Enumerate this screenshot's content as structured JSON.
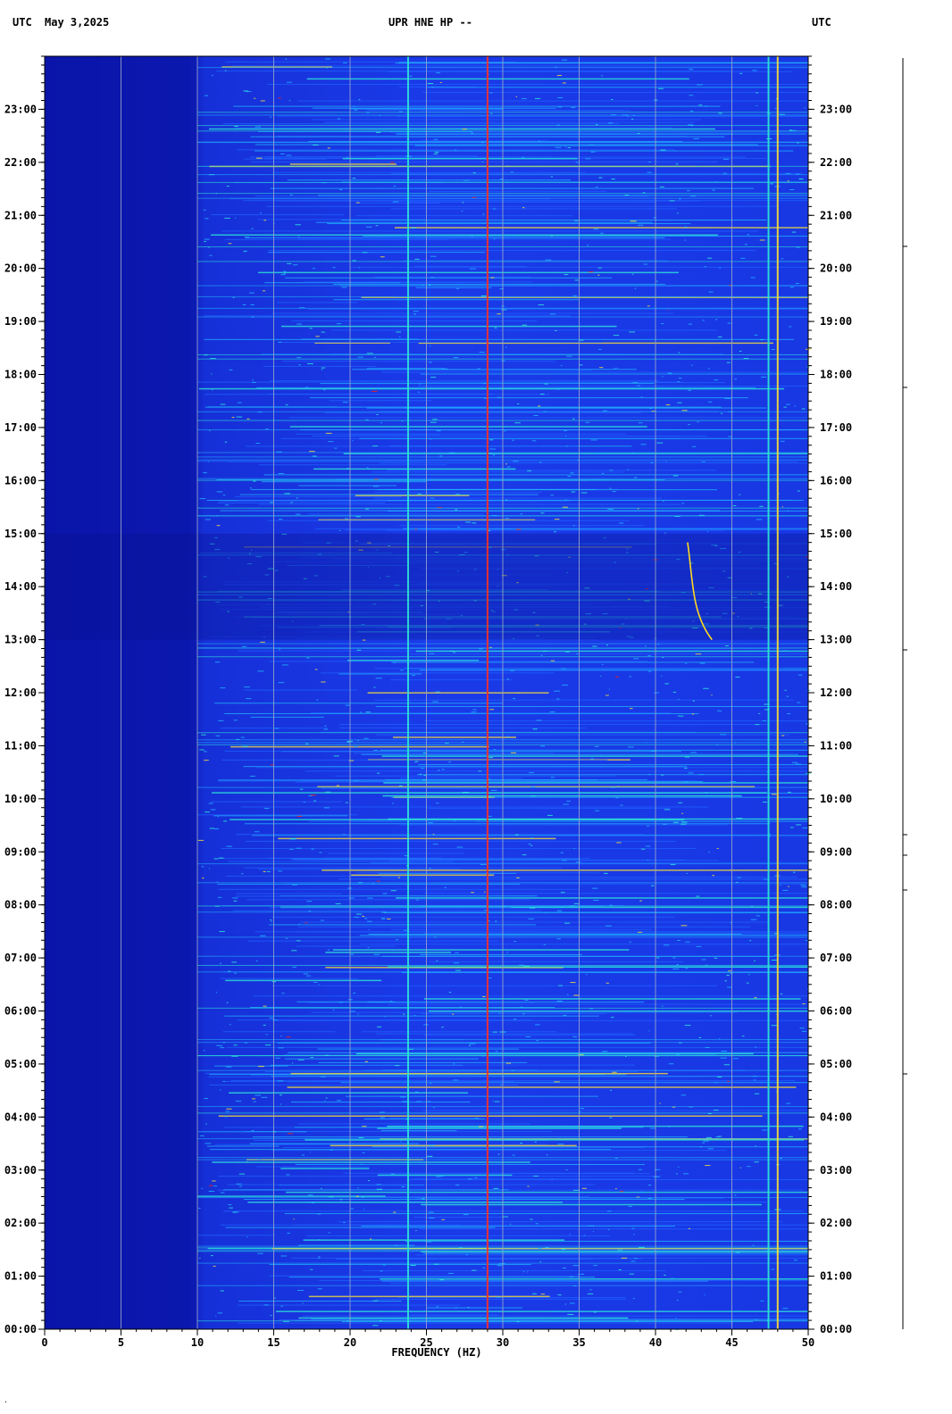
{
  "header": {
    "left_zone": "UTC",
    "date": "May 3,2025",
    "station": "UPR HNE HP --",
    "right_zone": "UTC"
  },
  "chart_data": {
    "type": "heatmap",
    "title": "UPR HNE HP --",
    "date": "May 3,2025",
    "xlabel": "FREQUENCY (HZ)",
    "ylabel": "UTC",
    "xlim": [
      0,
      50
    ],
    "ylim": [
      "00:00",
      "24:00"
    ],
    "x_ticks": [
      "0",
      "5",
      "10",
      "15",
      "20",
      "25",
      "30",
      "35",
      "40",
      "45",
      "50"
    ],
    "y_ticks_left": [
      "00:00",
      "01:00",
      "02:00",
      "03:00",
      "04:00",
      "05:00",
      "06:00",
      "07:00",
      "08:00",
      "09:00",
      "10:00",
      "11:00",
      "12:00",
      "13:00",
      "14:00",
      "15:00",
      "16:00",
      "17:00",
      "18:00",
      "19:00",
      "20:00",
      "21:00",
      "22:00",
      "23:00"
    ],
    "y_ticks_right": [
      "00:00",
      "01:00",
      "02:00",
      "03:00",
      "04:00",
      "05:00",
      "06:00",
      "07:00",
      "08:00",
      "09:00",
      "10:00",
      "11:00",
      "12:00",
      "13:00",
      "14:00",
      "15:00",
      "16:00",
      "17:00",
      "18:00",
      "19:00",
      "20:00",
      "21:00",
      "22:00",
      "23:00"
    ],
    "grid": true,
    "colormap": [
      "#0a10a8",
      "#1530e0",
      "#1f63ff",
      "#22b6ff",
      "#2ef0d8",
      "#ffe630",
      "#ff2010"
    ],
    "background_color": "#1224c8",
    "quiet_band": {
      "freq_range_hz": [
        0,
        10
      ],
      "color": "#0b16a8"
    },
    "quiet_period_utc": [
      "13:00",
      "15:00"
    ],
    "persistent_lines_hz": [
      {
        "freq": 23.8,
        "color": "#2ee6d6"
      },
      {
        "freq": 29.0,
        "color": "#ff3020"
      },
      {
        "freq": 47.4,
        "color": "#2ee6d6"
      },
      {
        "freq": 48.0,
        "color": "#ffe030"
      }
    ],
    "drifting_signal": {
      "start": {
        "freq": 42.1,
        "time": "14:50"
      },
      "end": {
        "freq": 43.7,
        "time": "13:00"
      },
      "color": "#ffd820"
    }
  }
}
